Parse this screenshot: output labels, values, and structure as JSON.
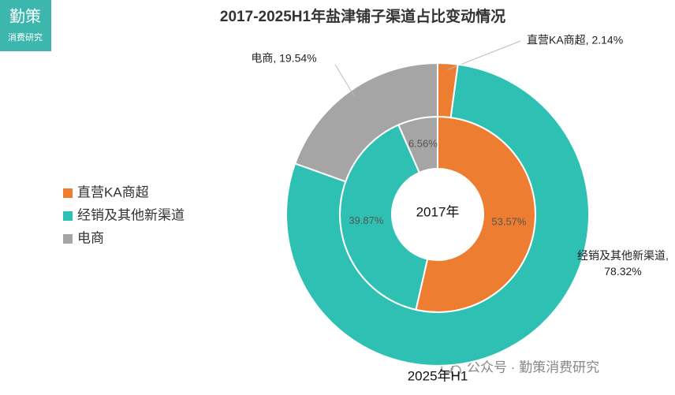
{
  "chart_data": {
    "type": "donut",
    "title": "2017-2025H1年盐津铺子渠道占比变动情况",
    "categories": [
      "直营KA商超",
      "经销及其他新渠道",
      "电商"
    ],
    "colors": [
      "#ed7d31",
      "#2ec1b3",
      "#a5a5a5"
    ],
    "legend": "left",
    "rings": [
      {
        "name": "2017年",
        "values": [
          53.57,
          39.87,
          6.56
        ],
        "value_labels": [
          "53.57%",
          "39.87%",
          "6.56%"
        ]
      },
      {
        "name": "2025年H1",
        "values": [
          2.14,
          78.32,
          19.54
        ],
        "value_labels": [
          "直营KA商超, 2.14%",
          "经销及其他新渠道, 78.32%",
          "电商, 19.54%"
        ]
      }
    ]
  },
  "logo": {
    "title": "勤策",
    "subtitle": "消费研究"
  },
  "watermark": "公众号 · 勤策消费研究"
}
